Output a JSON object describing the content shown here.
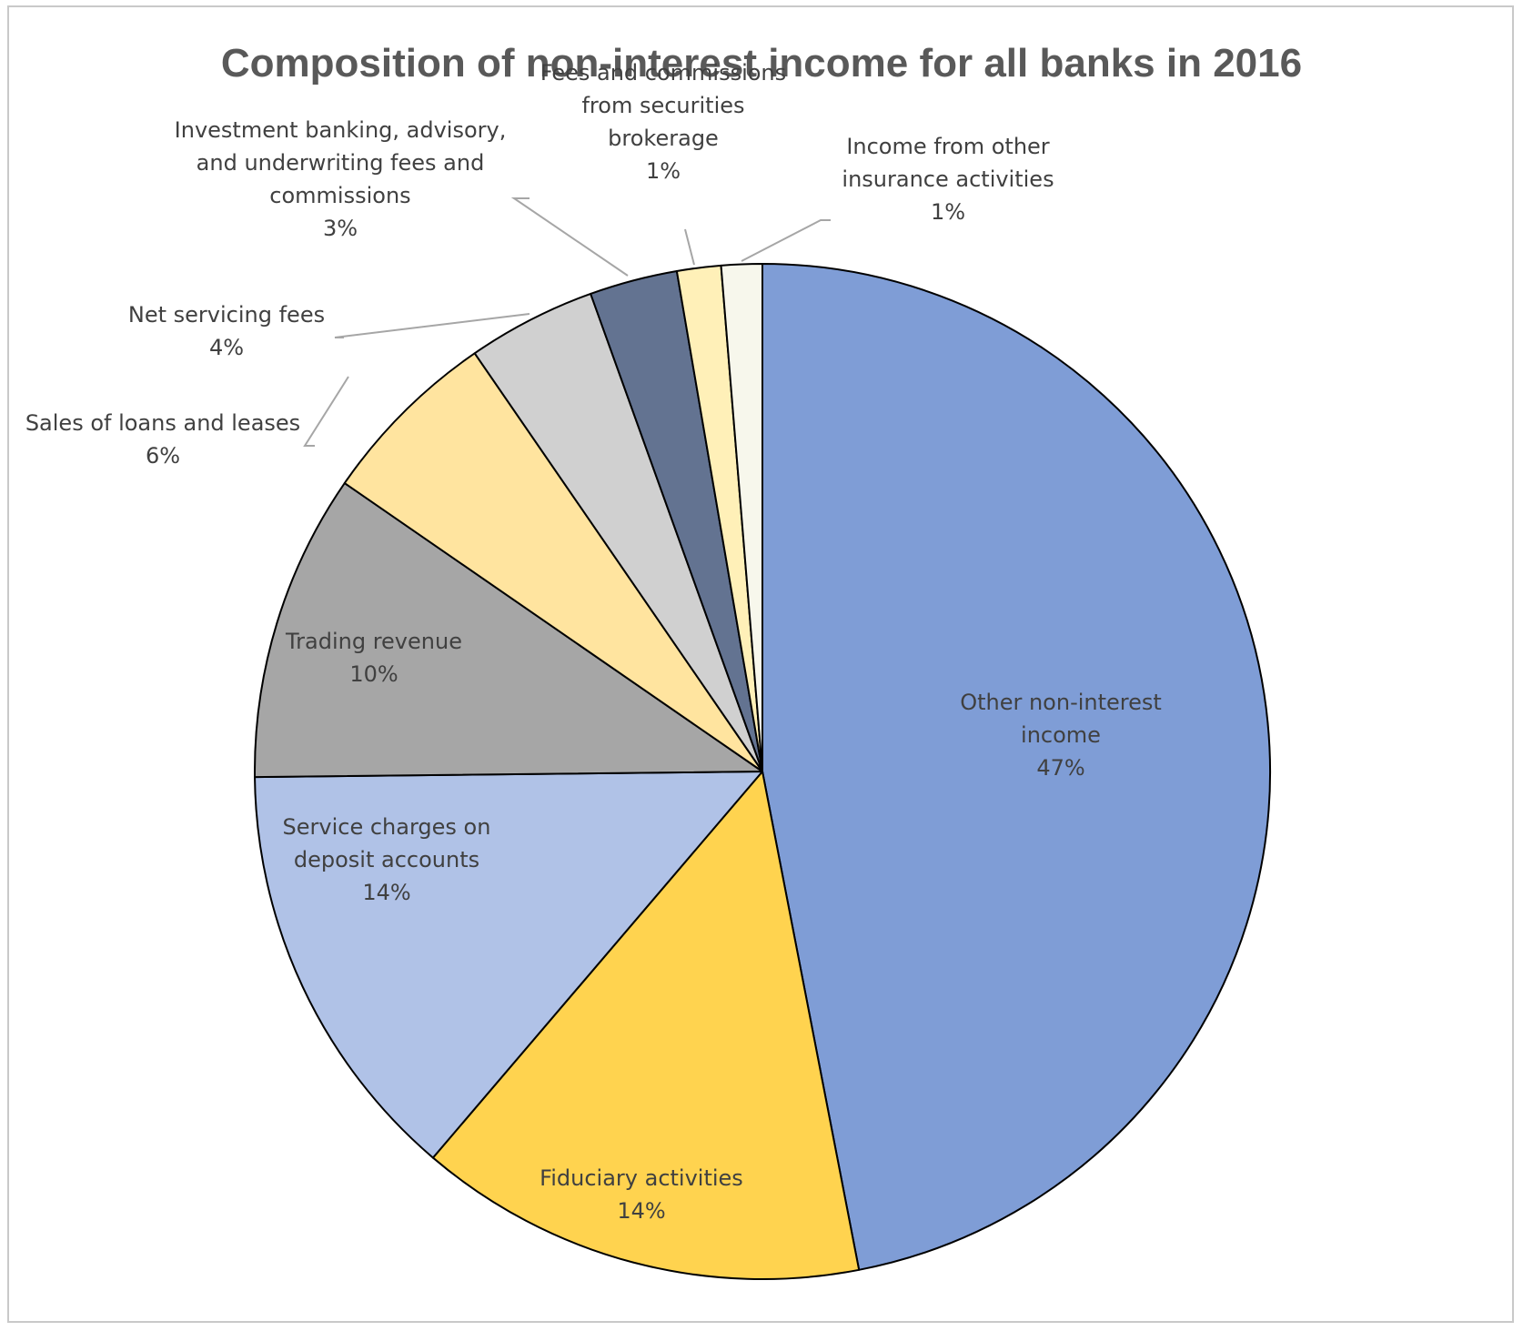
{
  "chart_data": {
    "type": "pie",
    "title": "Composition of non-interest income for all banks in 2016",
    "slices": [
      {
        "label": [
          "Other non-interest",
          "income"
        ],
        "percent_label": "47%",
        "value": 47.0,
        "color": "#7f9dd6"
      },
      {
        "label": [
          "Fiduciary activities"
        ],
        "percent_label": "14%",
        "value": 14.3,
        "color": "#ffd34f"
      },
      {
        "label": [
          "Service charges on",
          "deposit accounts"
        ],
        "percent_label": "14%",
        "value": 13.6,
        "color": "#b0c2e7"
      },
      {
        "label": [
          "Trading revenue"
        ],
        "percent_label": "10%",
        "value": 9.8,
        "color": "#a6a6a6"
      },
      {
        "label": [
          "Sales of loans and leases"
        ],
        "percent_label": "6%",
        "value": 5.8,
        "color": "#ffe49f"
      },
      {
        "label": [
          "Net servicing fees"
        ],
        "percent_label": "4%",
        "value": 4.1,
        "color": "#d0d0d0"
      },
      {
        "label": [
          "Investment banking, advisory,",
          "and underwriting fees and",
          "commissions"
        ],
        "percent_label": "3%",
        "value": 2.8,
        "color": "#637391"
      },
      {
        "label": [
          "Fees and commissions",
          "from securities",
          "brokerage"
        ],
        "percent_label": "1%",
        "value": 1.4,
        "color": "#fff0b8"
      },
      {
        "label": [
          "Income from other",
          "insurance activities"
        ],
        "percent_label": "1%",
        "value": 1.3,
        "color": "#f7f7ec"
      }
    ]
  }
}
